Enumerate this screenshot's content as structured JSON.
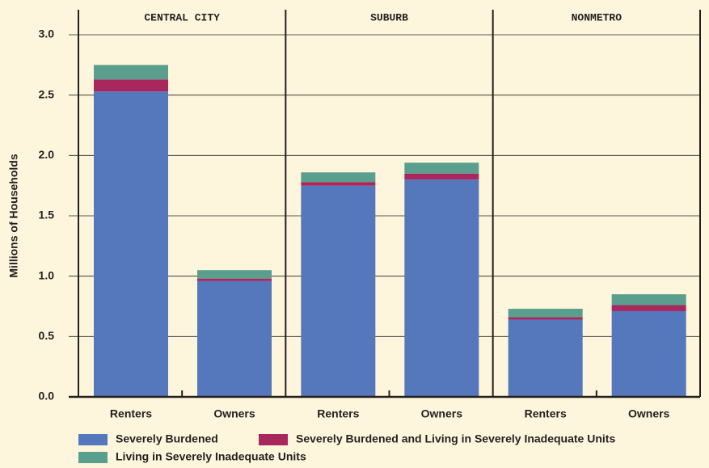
{
  "chart_data": {
    "type": "stacked-bar",
    "y_label": "Millions of Households",
    "group_labels": [
      "CENTRAL CITY",
      "SUBURB",
      "NONMETRO"
    ],
    "categories": [
      "Renters",
      "Owners",
      "Renters",
      "Owners",
      "Renters",
      "Owners"
    ],
    "series": [
      {
        "name": "Severely Burdened",
        "color": "#5577bb",
        "values": [
          2.53,
          0.96,
          1.75,
          1.8,
          0.64,
          0.71
        ]
      },
      {
        "name": "Severely Burdened and Living in Severely Inadequate Units",
        "color": "#a8285e",
        "values": [
          0.1,
          0.02,
          0.03,
          0.05,
          0.02,
          0.05
        ]
      },
      {
        "name": "Living in Severely Inadequate Units",
        "color": "#5a9e8e",
        "values": [
          0.12,
          0.07,
          0.08,
          0.09,
          0.07,
          0.09
        ]
      }
    ],
    "ylim": [
      0,
      3
    ],
    "yticks": [
      {
        "value": 0,
        "label": "0.0"
      },
      0.5,
      {
        "value": 1,
        "label": "1.0"
      },
      1.5,
      {
        "value": 2,
        "label": "2.0"
      },
      2.5,
      {
        "value": 3,
        "label": "3.0"
      }
    ],
    "grid": true
  }
}
